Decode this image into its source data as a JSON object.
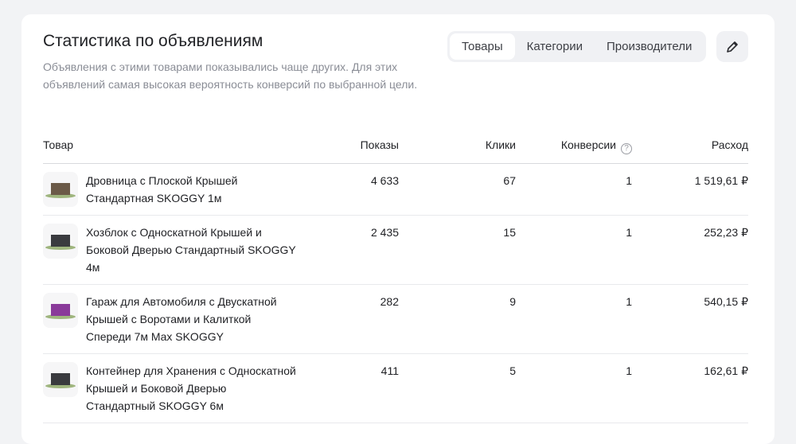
{
  "header": {
    "title": "Статистика по объявлениям",
    "subtitle": "Объявления с этими товарами показывались чаще других. Для этих объявлений самая высокая вероятность конверсий по выбранной цели."
  },
  "tabs": [
    {
      "label": "Товары",
      "active": true
    },
    {
      "label": "Категории"
    },
    {
      "label": "Производители"
    }
  ],
  "edit_icon": "pencil-icon",
  "columns": [
    "Товар",
    "Показы",
    "Клики",
    "Конверсии",
    "Расход"
  ],
  "rows": [
    {
      "name": "Дровница с Плоской Крышей Стандартная SKOGGY 1м",
      "shows": "4 633",
      "clicks": "67",
      "conv": "1",
      "cost": "1 519,61 ₽",
      "color": "#6b5a48"
    },
    {
      "name": "Хозблок с Односкатной Крышей и Боковой Дверью Стандартный SKOGGY 4м",
      "shows": "2 435",
      "clicks": "15",
      "conv": "1",
      "cost": "252,23 ₽",
      "color": "#3a3b3f"
    },
    {
      "name": "Гараж для Автомобиля с Двускатной Крышей с Воротами и Калиткой Спереди 7м Max SKOGGY",
      "shows": "282",
      "clicks": "9",
      "conv": "1",
      "cost": "540,15 ₽",
      "color": "#8a3a9a"
    },
    {
      "name": "Контейнер для Хранения с Односкатной Крышей и Боковой Дверью Стандартный SKOGGY 6м",
      "shows": "411",
      "clicks": "5",
      "conv": "1",
      "cost": "162,61 ₽",
      "color": "#3a3b3f"
    }
  ]
}
